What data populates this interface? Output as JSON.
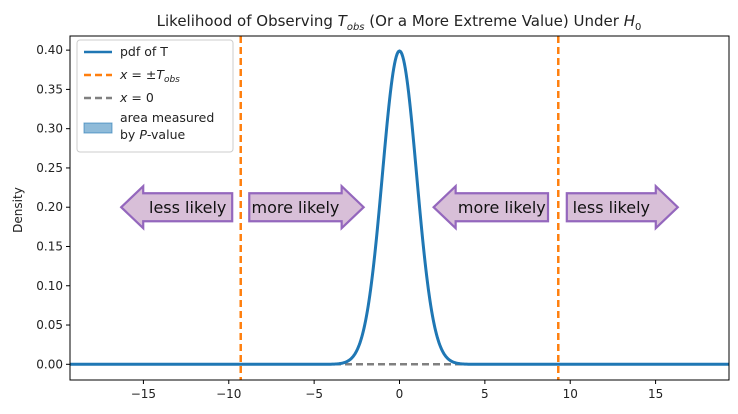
{
  "chart_data": {
    "type": "line",
    "title": {
      "prefix": "Likelihood of Observing ",
      "tobs_main": "T",
      "tobs_sub": "obs",
      "middle": " (Or a More Extreme Value) Under ",
      "h0_main": "H",
      "h0_sub": "0"
    },
    "xlabel": "",
    "ylabel": "Density",
    "xlim": [
      -19.3,
      19.3
    ],
    "ylim": [
      -0.02,
      0.418
    ],
    "x_ticks": [
      -15,
      -10,
      -5,
      0,
      5,
      10,
      15
    ],
    "x_tick_labels": [
      "−15",
      "−10",
      "−5",
      "0",
      "5",
      "10",
      "15"
    ],
    "y_ticks": [
      0.0,
      0.05,
      0.1,
      0.15,
      0.2,
      0.25,
      0.3,
      0.35,
      0.4
    ],
    "y_tick_labels": [
      "0.00",
      "0.05",
      "0.10",
      "0.15",
      "0.20",
      "0.25",
      "0.30",
      "0.35",
      "0.40"
    ],
    "grid": false,
    "legend_position": "top-left",
    "series": [
      {
        "name": "pdf of T",
        "kind": "normal_pdf",
        "mean": 0,
        "sd": 1,
        "color": "#1f77b4",
        "style": "solid"
      }
    ],
    "t_obs": 9.3,
    "vlines_color": "#ff7f0e",
    "hline_color": "#808080",
    "area_color": "#1f77b4",
    "legend": {
      "pdf_label": "pdf of T",
      "vline_label": {
        "prefix": "x",
        "mid": " = ±",
        "main": "T",
        "sub": "obs"
      },
      "hline_label": {
        "prefix": "x",
        "mid": " = 0"
      },
      "area_label_line1": "area measured",
      "area_label_line2_pre": "by ",
      "area_label_line2_italic": "P",
      "area_label_line2_post": "-value"
    },
    "annotations": [
      {
        "text": "less likely",
        "direction": "left",
        "x_from": -16.3,
        "x_to": -9.8,
        "y": 0.2
      },
      {
        "text": "more likely",
        "direction": "right",
        "x_from": -8.8,
        "x_to": -2.1,
        "y": 0.2
      },
      {
        "text": "more likely",
        "direction": "left",
        "x_from": 2.0,
        "x_to": 8.7,
        "y": 0.2
      },
      {
        "text": "less likely",
        "direction": "right",
        "x_from": 9.8,
        "x_to": 16.3,
        "y": 0.2
      }
    ],
    "annotation_style": {
      "fill": "#d8bfd8",
      "stroke": "#9467bd"
    }
  }
}
